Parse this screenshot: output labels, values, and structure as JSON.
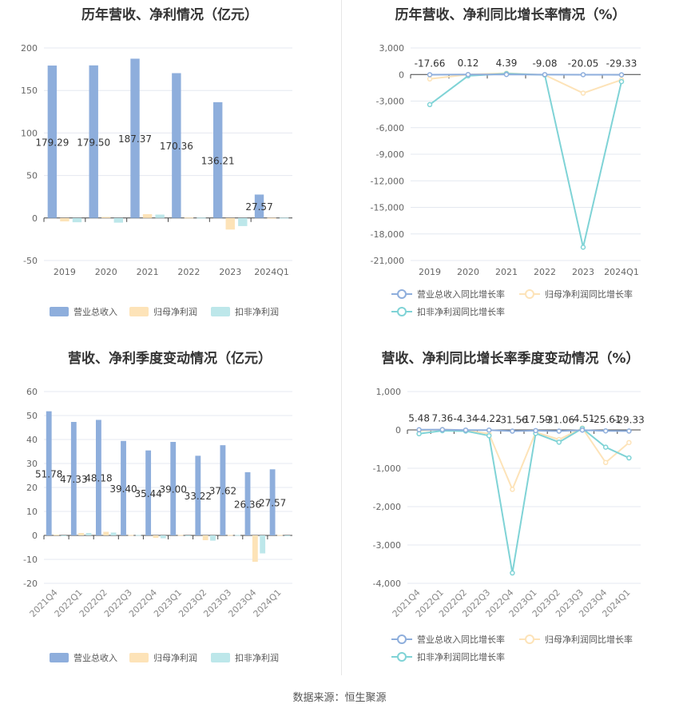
{
  "footer": "数据来源：恒生聚源",
  "colors": {
    "revenue": "#8eaedc",
    "net_profit": "#fde3b8",
    "deducted": "#bde7ea",
    "rev_growth": "#8eaedc",
    "np_growth": "#fde3b8",
    "ded_growth": "#7fd3d6"
  },
  "chart_data": [
    {
      "id": "annual_values",
      "type": "bar",
      "title": "历年营收、净利情况（亿元）",
      "categories": [
        "2019",
        "2020",
        "2021",
        "2022",
        "2023",
        "2024Q1"
      ],
      "series": [
        {
          "name": "营业总收入",
          "values": [
            179.29,
            179.5,
            187.37,
            170.36,
            136.21,
            27.57
          ],
          "labels": [
            "179.29",
            "179.50",
            "187.37",
            "170.36",
            "136.21",
            "27.57"
          ]
        },
        {
          "name": "归母净利润",
          "values": [
            -4.0,
            1.2,
            4.5,
            0.5,
            -13.6,
            0.2
          ]
        },
        {
          "name": "扣非净利润",
          "values": [
            -5.0,
            -5.5,
            4.0,
            0.4,
            -9.5,
            0.3
          ]
        }
      ],
      "ylim": [
        -50,
        200
      ],
      "yticks": [
        "-50",
        "0",
        "50",
        "100",
        "150",
        "200"
      ],
      "legend": "bottom"
    },
    {
      "id": "annual_growth",
      "type": "line",
      "title": "历年营收、净利同比增长率情况（%）",
      "categories": [
        "2019",
        "2020",
        "2021",
        "2022",
        "2023",
        "2024Q1"
      ],
      "series": [
        {
          "name": "营业总收入同比增长率",
          "values": [
            -17.66,
            0.12,
            4.39,
            -9.08,
            -20.05,
            -29.33
          ],
          "labels": [
            "-17.66",
            "0.12",
            "4.39",
            "-9.08",
            "-20.05",
            "-29.33"
          ]
        },
        {
          "name": "归母净利润同比增长率",
          "values": [
            -500,
            0,
            150,
            -50,
            -2100,
            -600
          ]
        },
        {
          "name": "扣非净利润同比增长率",
          "values": [
            -3400,
            -150,
            100,
            -50,
            -19500,
            -800
          ]
        }
      ],
      "ylim": [
        -21000,
        3000
      ],
      "yticks": [
        "-21,000",
        "-18,000",
        "-15,000",
        "-12,000",
        "-9,000",
        "-6,000",
        "-3,000",
        "0",
        "3,000"
      ],
      "legend": "bottom"
    },
    {
      "id": "quarterly_values",
      "type": "bar",
      "title": "营收、净利季度变动情况（亿元）",
      "categories": [
        "2021Q4",
        "2022Q1",
        "2022Q2",
        "2022Q3",
        "2022Q4",
        "2023Q1",
        "2023Q2",
        "2023Q3",
        "2023Q4",
        "2024Q1"
      ],
      "series": [
        {
          "name": "营业总收入",
          "values": [
            51.78,
            47.33,
            48.18,
            39.4,
            35.44,
            39.0,
            33.22,
            37.62,
            26.36,
            27.57
          ],
          "labels": [
            "51.78",
            "47.33",
            "48.18",
            "39.40",
            "35.44",
            "39.00",
            "33.22",
            "37.62",
            "26.36",
            "27.57"
          ]
        },
        {
          "name": "归母净利润",
          "values": [
            0.3,
            1.0,
            1.5,
            0.2,
            -1.0,
            0.2,
            -2.0,
            0.2,
            -11.0,
            0.2
          ]
        },
        {
          "name": "扣非净利润",
          "values": [
            -0.2,
            1.0,
            1.2,
            0.2,
            -1.2,
            -0.2,
            -2.2,
            0.2,
            -7.5,
            -0.3
          ]
        }
      ],
      "ylim": [
        -20,
        60
      ],
      "yticks": [
        "-20",
        "-10",
        "0",
        "10",
        "20",
        "30",
        "40",
        "50",
        "60"
      ],
      "legend": "bottom"
    },
    {
      "id": "quarterly_growth",
      "type": "line",
      "title": "营收、净利同比增长率季度变动情况（%）",
      "categories": [
        "2021Q4",
        "2022Q1",
        "2022Q2",
        "2022Q3",
        "2022Q4",
        "2023Q1",
        "2023Q2",
        "2023Q3",
        "2023Q4",
        "2024Q1"
      ],
      "series": [
        {
          "name": "营业总收入同比增长率",
          "values": [
            5.48,
            7.36,
            -4.34,
            -4.22,
            -31.56,
            -17.59,
            -31.06,
            -4.51,
            -25.61,
            -29.33
          ],
          "labels": [
            "5.48",
            "7.36",
            "-4.34",
            "-4.22",
            "-31.56",
            "-17.59",
            "-31.06",
            "-4.51",
            "-25.61",
            "-29.33"
          ]
        },
        {
          "name": "归母净利润同比增长率",
          "values": [
            -20,
            10,
            -10,
            -100,
            -1550,
            -60,
            -250,
            50,
            -850,
            -330
          ]
        },
        {
          "name": "扣非净利润同比增长率",
          "values": [
            -100,
            -20,
            -30,
            -150,
            -3730,
            -90,
            -320,
            40,
            -450,
            -730
          ]
        }
      ],
      "ylim": [
        -4000,
        1000
      ],
      "yticks": [
        "-4,000",
        "-3,000",
        "-2,000",
        "-1,000",
        "0",
        "1,000"
      ],
      "legend": "bottom"
    }
  ]
}
